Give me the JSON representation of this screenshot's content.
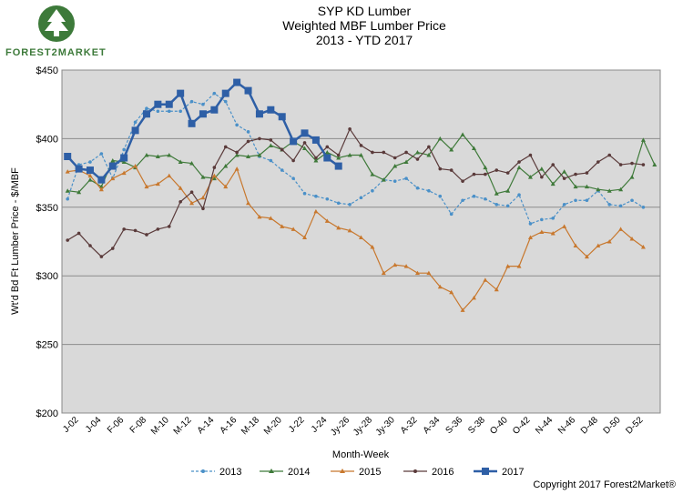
{
  "logo": {
    "text": "FOREST2MARKET"
  },
  "chart_data": {
    "type": "line",
    "title": [
      "SYP KD Lumber",
      "Weighted MBF Lumber Price",
      "2013 - YTD 2017"
    ],
    "xlabel": "Month-Week",
    "ylabel": "Wt'd Bd Ft Lumber Price - $/MBF",
    "ylim": [
      200,
      450
    ],
    "yticks": [
      "$200",
      "$250",
      "$300",
      "$350",
      "$400",
      "$450"
    ],
    "x_tick_labels": [
      "J-02",
      "J-04",
      "F-06",
      "F-08",
      "M-10",
      "M-12",
      "A-14",
      "A-16",
      "M-18",
      "M-20",
      "J-22",
      "J-24",
      "Jy-26",
      "Jy-28",
      "Jy-30",
      "A-32",
      "A-34",
      "S-36",
      "S-38",
      "O-40",
      "O-42",
      "N-44",
      "N-46",
      "D-48",
      "D-50",
      "D-52"
    ],
    "grid": true,
    "legend": "bottom",
    "series": [
      {
        "name": "2013",
        "color": "#4a90c8",
        "dash": true,
        "marker": "circle",
        "values": [
          356,
          381,
          383,
          389,
          371,
          392,
          412,
          422,
          420,
          420,
          420,
          427,
          425,
          433,
          427,
          410,
          405,
          387,
          384,
          377,
          371,
          360,
          358,
          356,
          353,
          352,
          357,
          362,
          370,
          369,
          371,
          364,
          362,
          358,
          345,
          355,
          358,
          356,
          352,
          351,
          359,
          338,
          341,
          342,
          352,
          355,
          355,
          362,
          352,
          351,
          355,
          350
        ]
      },
      {
        "name": "2014",
        "color": "#3f7a3a",
        "dash": false,
        "marker": "triangle",
        "values": [
          362,
          361,
          370,
          365,
          384,
          383,
          379,
          388,
          387,
          388,
          383,
          382,
          372,
          371,
          380,
          388,
          387,
          388,
          395,
          392,
          398,
          393,
          384,
          390,
          386,
          388,
          388,
          374,
          370,
          380,
          383,
          390,
          388,
          400,
          392,
          403,
          393,
          379,
          360,
          362,
          379,
          372,
          378,
          367,
          376,
          365,
          365,
          363,
          362,
          363,
          372,
          399,
          381
        ]
      },
      {
        "name": "2015",
        "color": "#c8782e",
        "dash": false,
        "marker": "triangle",
        "values": [
          376,
          377,
          373,
          363,
          371,
          375,
          380,
          365,
          367,
          373,
          364,
          353,
          357,
          373,
          365,
          378,
          353,
          343,
          342,
          336,
          334,
          328,
          347,
          340,
          335,
          333,
          328,
          321,
          302,
          308,
          307,
          302,
          302,
          292,
          288,
          275,
          284,
          297,
          290,
          307,
          307,
          328,
          332,
          331,
          336,
          322,
          314,
          322,
          325,
          334,
          327,
          321
        ]
      },
      {
        "name": "2016",
        "color": "#5a3a3a",
        "dash": false,
        "marker": "circle",
        "values": [
          326,
          331,
          322,
          314,
          320,
          334,
          333,
          330,
          334,
          336,
          354,
          361,
          349,
          379,
          394,
          390,
          398,
          400,
          399,
          392,
          384,
          397,
          386,
          394,
          388,
          407,
          395,
          390,
          390,
          386,
          390,
          385,
          394,
          378,
          377,
          369,
          374,
          374,
          377,
          375,
          383,
          388,
          372,
          381,
          371,
          374,
          375,
          383,
          388,
          381,
          382,
          381
        ]
      },
      {
        "name": "2017",
        "color": "#2e5fa6",
        "dash": false,
        "marker": "square",
        "values": [
          387,
          378,
          377,
          370,
          380,
          386,
          406,
          418,
          425,
          425,
          433,
          411,
          418,
          421,
          433,
          441,
          435,
          418,
          421,
          416,
          398,
          404,
          399,
          386,
          380
        ]
      }
    ]
  },
  "copyright": "Copyright 2017 Forest2Market®"
}
